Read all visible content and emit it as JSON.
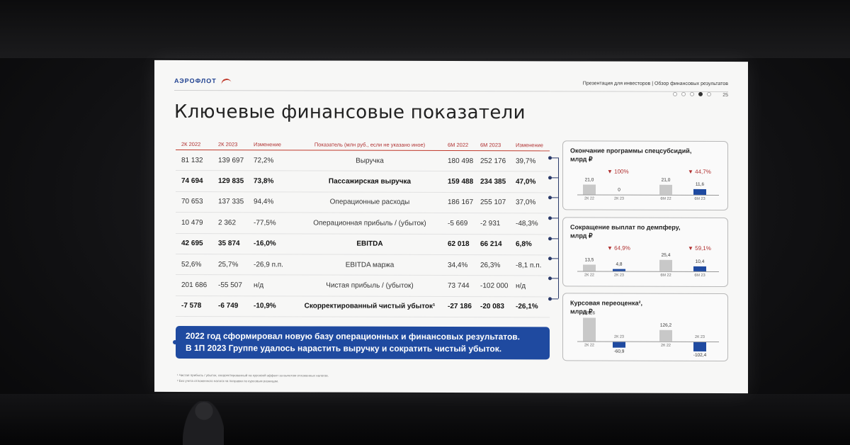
{
  "header": {
    "logo": "АЭРОФЛОТ",
    "title": "Презентация для инвесторов | Обзор финансовых результатов",
    "page_number": "25"
  },
  "slide_title": "Ключевые финансовые показатели",
  "table": {
    "headers": [
      "2К 2022",
      "2К 2023",
      "Изменение",
      "Показатель (млн руб., если не указано иное)",
      "6М 2022",
      "6М 2023",
      "Изменение"
    ],
    "rows": [
      {
        "v": [
          "81 132",
          "139 697",
          "72,2%",
          "Выручка",
          "180 498",
          "252 176",
          "39,7%"
        ],
        "bold": false
      },
      {
        "v": [
          "74 694",
          "129 835",
          "73,8%",
          "Пассажирская выручка",
          "159 488",
          "234 385",
          "47,0%"
        ],
        "bold": true
      },
      {
        "v": [
          "70 653",
          "137 335",
          "94,4%",
          "Операционные расходы",
          "186 167",
          "255 107",
          "37,0%"
        ],
        "bold": false
      },
      {
        "v": [
          "10 479",
          "2 362",
          "-77,5%",
          "Операционная прибыль / (убыток)",
          "-5 669",
          "-2 931",
          "-48,3%"
        ],
        "bold": false
      },
      {
        "v": [
          "42 695",
          "35 874",
          "-16,0%",
          "EBITDA",
          "62 018",
          "66 214",
          "6,8%"
        ],
        "bold": true
      },
      {
        "v": [
          "52,6%",
          "25,7%",
          "-26,9 п.п.",
          "EBITDA маржа",
          "34,4%",
          "26,3%",
          "-8,1 п.п."
        ],
        "bold": false
      },
      {
        "v": [
          "201 686",
          "-55 507",
          "н/д",
          "Чистая прибыль / (убыток)",
          "73 744",
          "-102 000",
          "н/д"
        ],
        "bold": false
      },
      {
        "v": [
          "-7 578",
          "-6 749",
          "-10,9%",
          "Скорректированный чистый убыток¹",
          "-27 186",
          "-20 083",
          "-26,1%"
        ],
        "bold": true
      }
    ]
  },
  "callout": {
    "line1": "2022 год сформировал новую базу операционных и финансовых результатов.",
    "line2": "В 1П 2023 Группе удалось нарастить выручку и сократить чистый убыток."
  },
  "footnotes": [
    "¹ Чистая прибыль / убыток, скорректированный на курсовой эффект за вычетом отложенных налогов.",
    "² Без учета отложенного налога на поправки по курсовым разницам."
  ],
  "panels": [
    {
      "title_line1": "Окончание программы спецсубсидий,",
      "title_line2": "млрд ₽",
      "changes": [
        "▼ 100%",
        "▼ 44,7%"
      ],
      "bars": [
        {
          "label": "2К 22",
          "value": 21.0,
          "text": "21,0",
          "color": "gray"
        },
        {
          "label": "2К 23",
          "value": 0,
          "text": "0",
          "color": "blue"
        },
        {
          "label": "6М 22",
          "value": 21.0,
          "text": "21,0",
          "color": "gray"
        },
        {
          "label": "6М 23",
          "value": 11.6,
          "text": "11,6",
          "color": "blue"
        }
      ],
      "max": 21.0
    },
    {
      "title_line1": "Сокращение выплат по демпферу,",
      "title_line2": "млрд ₽",
      "changes": [
        "▼ 64,9%",
        "▼ 59,1%"
      ],
      "bars": [
        {
          "label": "2К 22",
          "value": 13.5,
          "text": "13,5",
          "color": "gray"
        },
        {
          "label": "2К 23",
          "value": 4.8,
          "text": "4,8",
          "color": "blue"
        },
        {
          "label": "6М 22",
          "value": 25.4,
          "text": "25,4",
          "color": "gray"
        },
        {
          "label": "6М 23",
          "value": 10.4,
          "text": "10,4",
          "color": "blue"
        }
      ],
      "max": 25.4
    },
    {
      "title_line1": "Курсовая переоценка²,",
      "title_line2": "млрд ₽",
      "changes": [],
      "bars": [
        {
          "label": "2К 22",
          "value": 261.6,
          "text": "261,6",
          "color": "gray"
        },
        {
          "label": "2К 23",
          "value": -60.9,
          "text": "-60,9",
          "color": "blue"
        },
        {
          "label": "2К 22",
          "value": 126.2,
          "text": "126,2",
          "color": "gray"
        },
        {
          "label": "2К 23",
          "value": -102.4,
          "text": "-102,4",
          "color": "blue"
        }
      ],
      "max": 261.6
    }
  ],
  "colors": {
    "accent": "#b03030",
    "brand_blue": "#1f4aa0",
    "logo_blue": "#1d3f8f"
  }
}
